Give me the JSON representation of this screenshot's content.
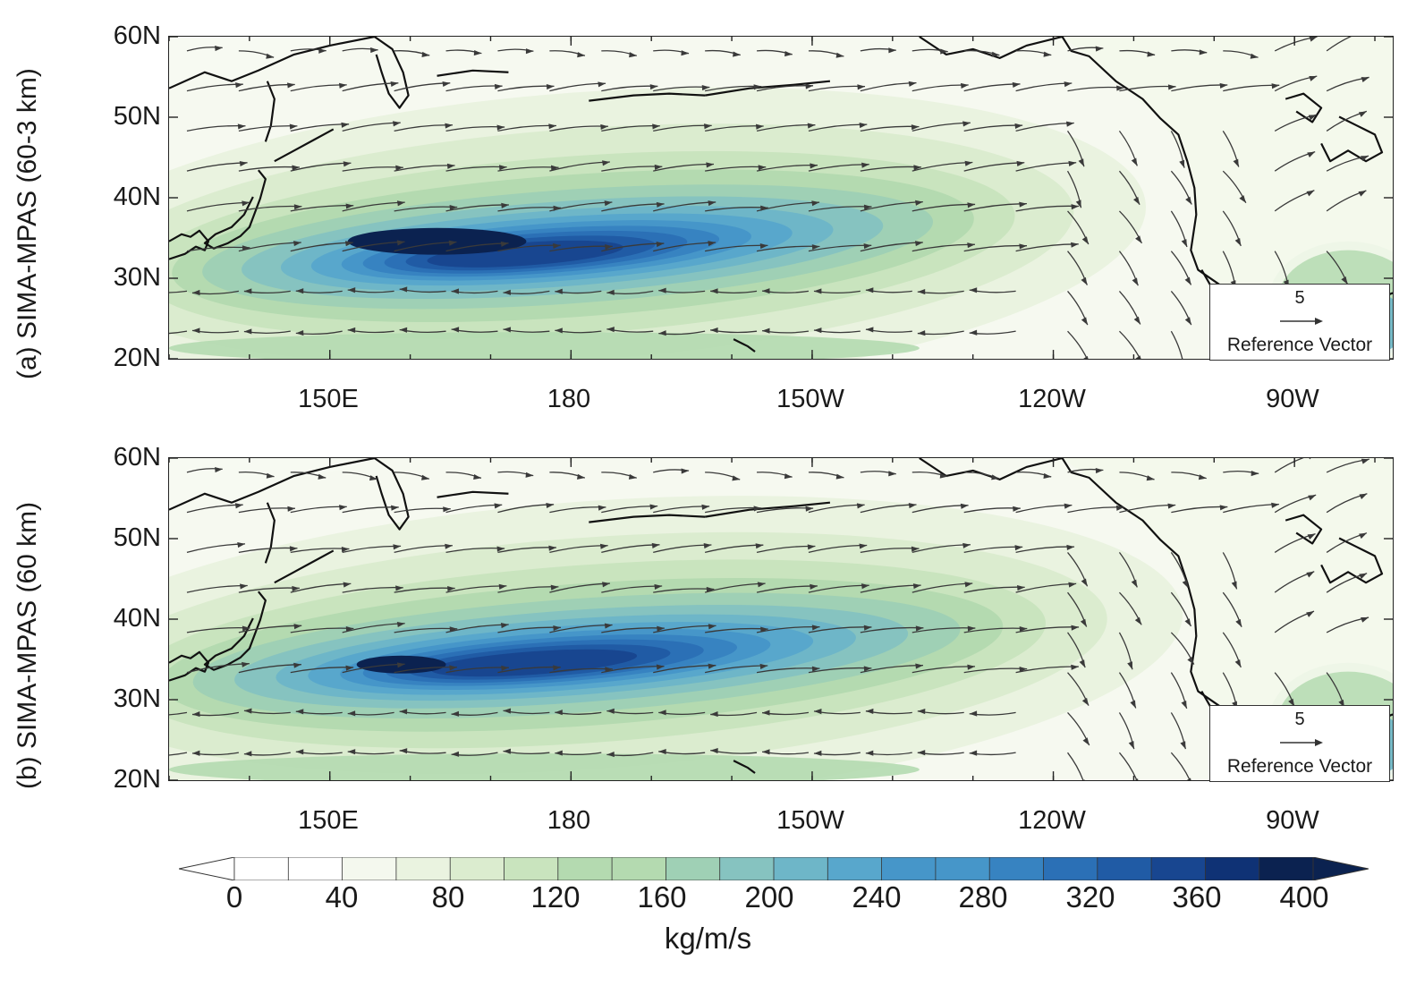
{
  "panels": [
    {
      "title": "(a) SIMA-MPAS (60-3 km)",
      "variant": "a"
    },
    {
      "title": "(b) SIMA-MPAS (60 km)",
      "variant": "b"
    }
  ],
  "lat_labels": [
    "60N",
    "50N",
    "40N",
    "30N",
    "20N"
  ],
  "lon_labels": [
    "150E",
    "180",
    "150W",
    "120W",
    "90W"
  ],
  "reference_vector": {
    "value": "5",
    "label": "Reference Vector"
  },
  "colorbar": {
    "ticks": [
      "0",
      "40",
      "80",
      "120",
      "160",
      "200",
      "240",
      "280",
      "320",
      "360",
      "400"
    ],
    "unit": "kg/m/s",
    "colors": [
      "#ffffff",
      "#f4f8ee",
      "#eaf3e0",
      "#dbeccf",
      "#c9e4be",
      "#b4dab0",
      "#9fd0b5",
      "#86c3c0",
      "#6eb6c8",
      "#58a7cc",
      "#4696c9",
      "#3783c1",
      "#2b70b6",
      "#205ba5",
      "#184690",
      "#0f3275",
      "#0b2250"
    ]
  },
  "colors": {
    "land": "#f6f9f0",
    "coast": "#111111",
    "arrow": "#3a3a3a"
  }
}
